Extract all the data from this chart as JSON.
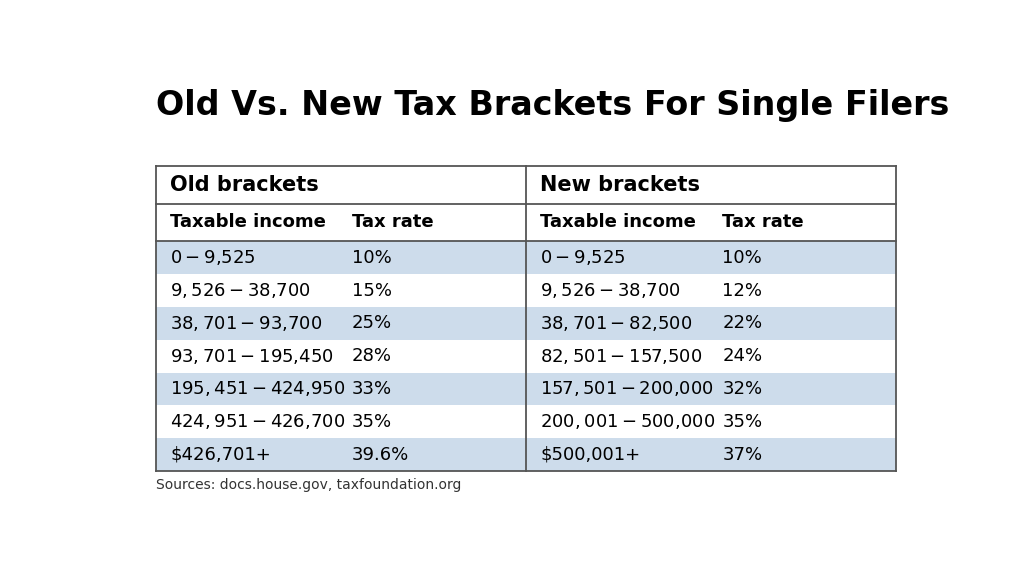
{
  "title": "Old Vs. New Tax Brackets For Single Filers",
  "old_label": "Old brackets",
  "new_label": "New brackets",
  "col_headers": [
    "Taxable income",
    "Tax rate",
    "Taxable income",
    "Tax rate"
  ],
  "old_data": [
    [
      "$0-$9,525",
      "10%"
    ],
    [
      "$9,526-$38,700",
      "15%"
    ],
    [
      "$38,701-$93,700",
      "25%"
    ],
    [
      "$93,701-$195,450",
      "28%"
    ],
    [
      "$195,451-$424,950",
      "33%"
    ],
    [
      "$424,951-$426,700",
      "35%"
    ],
    [
      "$426,701+",
      "39.6%"
    ]
  ],
  "new_data": [
    [
      "$0-$9,525",
      "10%"
    ],
    [
      "$9,526-$38,700",
      "12%"
    ],
    [
      "$38,701-$82,500",
      "22%"
    ],
    [
      "$82,501-$157,500",
      "24%"
    ],
    [
      "$157,501-$200,000",
      "32%"
    ],
    [
      "$200,001-$500,000",
      "35%"
    ],
    [
      "$500,001+",
      "37%"
    ]
  ],
  "source_text": "Sources: docs.house.gov, taxfoundation.org",
  "bg_color": "#ffffff",
  "shaded_row_color": "#cddceb",
  "white_row_color": "#ffffff",
  "border_color": "#555555",
  "title_fontsize": 24,
  "section_label_fontsize": 15,
  "col_header_fontsize": 13,
  "data_fontsize": 13,
  "source_fontsize": 10
}
